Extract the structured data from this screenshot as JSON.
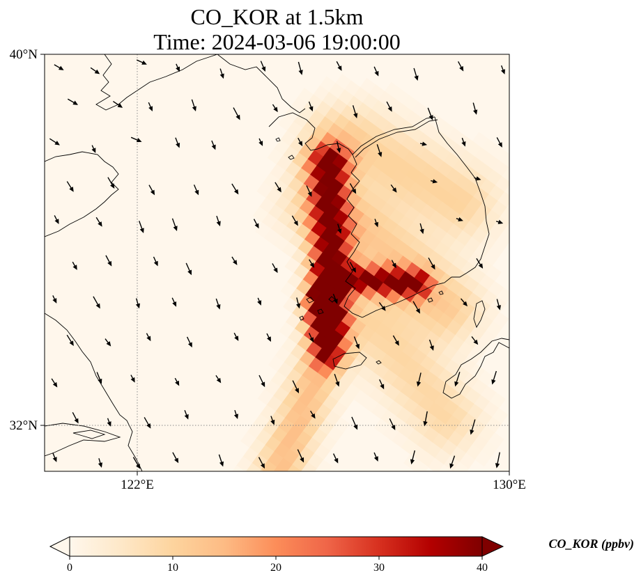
{
  "map": {
    "title_line1": "CO_KOR at 1.5km",
    "title_line2": "Time: 2024-03-06 19:00:00",
    "extent": {
      "lon_min": 120,
      "lon_max": 130,
      "lat_min": 31,
      "lat_max": 40
    },
    "lat_ticks": [
      {
        "value": 40,
        "label": "40°N"
      },
      {
        "value": 32,
        "label": "32°N"
      }
    ],
    "lon_ticks": [
      {
        "value": 122,
        "label": "122°E"
      },
      {
        "value": 130,
        "label": "130°E"
      }
    ],
    "gridlines": {
      "lon": 122,
      "lat": 32
    }
  },
  "colorbar": {
    "title": "CO_KOR (ppbv)",
    "min": 0,
    "max": 40,
    "tick_values": [
      0,
      10,
      20,
      30,
      40
    ],
    "tick_labels": [
      "0",
      "10",
      "20",
      "30",
      "40"
    ],
    "colormap": "OrRd",
    "stops": [
      "#fff7ec",
      "#fee8c8",
      "#fdd49e",
      "#fdbb84",
      "#fc8d59",
      "#ef6548",
      "#d7301f",
      "#b30000",
      "#7f0000"
    ],
    "extend": "both"
  },
  "field_peaks": [
    {
      "lon": 125.9,
      "lat": 37.0,
      "value": 40
    },
    {
      "lon": 126.3,
      "lat": 34.7,
      "value": 40
    },
    {
      "lon": 127.7,
      "lat": 34.9,
      "value": 34
    },
    {
      "lon": 126.0,
      "lat": 33.8,
      "value": 32
    }
  ],
  "wind_vectors_note": "",
  "colors": {
    "coastline": "#000000",
    "grid": "#8a8a8a",
    "land_ocean_background": "#fff7ec"
  }
}
